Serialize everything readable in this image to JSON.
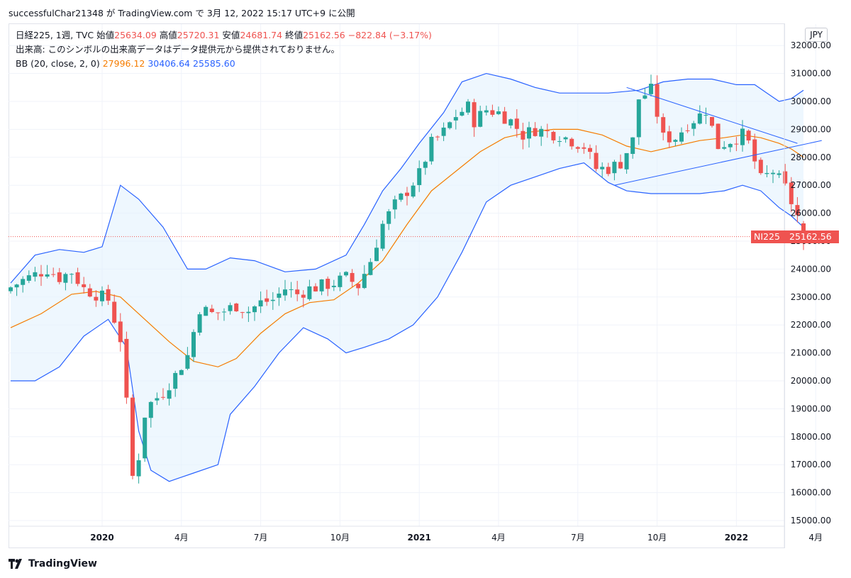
{
  "header": {
    "attribution": "successfulChar21348 が TradingView.com で 3月 12, 2022 15:17 UTC+9 に公開"
  },
  "legend": {
    "symbol": "日経225, 1週, TVC",
    "open_label": "始値",
    "open": "25634.09",
    "high_label": "高値",
    "high": "25720.31",
    "low_label": "安値",
    "low": "24681.74",
    "close_label": "終値",
    "close": "25162.56",
    "change": "−822.84 (−3.17%)",
    "volume_note": "出来高: このシンボルの出来高データはデータ提供元から提供されておりません。",
    "bb_label": "BB (20, close, 2, 0)",
    "bb_basis": "27996.12",
    "bb_upper": "30406.64",
    "bb_lower": "25585.60"
  },
  "currency": "JPY",
  "price_tag": {
    "symbol": "NI225",
    "value": "25162.56"
  },
  "footer": {
    "brand": "TradingView"
  },
  "colors": {
    "up": "#26a69a",
    "down": "#ef5350",
    "basis": "#f57c00",
    "band": "#2962ff",
    "band_fill": "#e3f2fd",
    "grid": "#f0f3fa"
  },
  "chart_data": {
    "type": "candlestick",
    "interval": "1W",
    "ylim": [
      15000,
      32000
    ],
    "y_ticks": [
      "15000.00",
      "16000.00",
      "17000.00",
      "18000.00",
      "19000.00",
      "20000.00",
      "21000.00",
      "22000.00",
      "23000.00",
      "24000.00",
      "25000.00",
      "26000.00",
      "27000.00",
      "28000.00",
      "29000.00",
      "30000.00",
      "31000.00",
      "32000.00"
    ],
    "x_ticks": [
      {
        "label": "2020",
        "week": 15,
        "bold": true
      },
      {
        "label": "4月",
        "week": 28,
        "bold": false
      },
      {
        "label": "7月",
        "week": 41,
        "bold": false
      },
      {
        "label": "10月",
        "week": 54,
        "bold": false
      },
      {
        "label": "2021",
        "week": 67,
        "bold": true
      },
      {
        "label": "4月",
        "week": 80,
        "bold": false
      },
      {
        "label": "7月",
        "week": 93,
        "bold": false
      },
      {
        "label": "10月",
        "week": 106,
        "bold": false
      },
      {
        "label": "2022",
        "week": 119,
        "bold": true
      },
      {
        "label": "4月",
        "week": 132,
        "bold": false
      }
    ],
    "last_price": 25162.56,
    "anchors": [
      [
        0,
        23350
      ],
      [
        2,
        23600
      ],
      [
        4,
        23800
      ],
      [
        6,
        24000
      ],
      [
        8,
        23700
      ],
      [
        10,
        23900
      ],
      [
        12,
        23300
      ],
      [
        14,
        23100
      ],
      [
        16,
        22900
      ],
      [
        18,
        21500
      ],
      [
        19,
        19400
      ],
      [
        20,
        16600
      ],
      [
        21,
        17300
      ],
      [
        22,
        18800
      ],
      [
        23,
        19200
      ],
      [
        25,
        19600
      ],
      [
        27,
        20200
      ],
      [
        29,
        20900
      ],
      [
        31,
        22600
      ],
      [
        33,
        22400
      ],
      [
        35,
        22500
      ],
      [
        37,
        22700
      ],
      [
        39,
        22500
      ],
      [
        41,
        22800
      ],
      [
        43,
        22900
      ],
      [
        45,
        23300
      ],
      [
        47,
        23100
      ],
      [
        49,
        23300
      ],
      [
        51,
        23400
      ],
      [
        53,
        23500
      ],
      [
        55,
        23700
      ],
      [
        57,
        23400
      ],
      [
        59,
        24300
      ],
      [
        61,
        25600
      ],
      [
        63,
        26300
      ],
      [
        65,
        26800
      ],
      [
        67,
        27400
      ],
      [
        69,
        28500
      ],
      [
        71,
        28900
      ],
      [
        73,
        29500
      ],
      [
        75,
        29800
      ],
      [
        76,
        29300
      ],
      [
        78,
        29700
      ],
      [
        80,
        29600
      ],
      [
        82,
        29300
      ],
      [
        84,
        28800
      ],
      [
        86,
        29000
      ],
      [
        88,
        28900
      ],
      [
        90,
        28800
      ],
      [
        92,
        28600
      ],
      [
        94,
        28400
      ],
      [
        96,
        27600
      ],
      [
        98,
        27600
      ],
      [
        100,
        27800
      ],
      [
        102,
        28600
      ],
      [
        103,
        30100
      ],
      [
        105,
        30400
      ],
      [
        107,
        28700
      ],
      [
        109,
        28700
      ],
      [
        111,
        29200
      ],
      [
        113,
        29500
      ],
      [
        114,
        29700
      ],
      [
        116,
        28400
      ],
      [
        118,
        28600
      ],
      [
        120,
        28800
      ],
      [
        121,
        28500
      ],
      [
        123,
        27200
      ],
      [
        125,
        27500
      ],
      [
        127,
        26900
      ],
      [
        129,
        25900
      ],
      [
        130,
        25162.56
      ]
    ],
    "bands": {
      "upper": [
        [
          0,
          23500
        ],
        [
          4,
          24500
        ],
        [
          8,
          24700
        ],
        [
          12,
          24600
        ],
        [
          15,
          24800
        ],
        [
          18,
          27000
        ],
        [
          21,
          26500
        ],
        [
          25,
          25500
        ],
        [
          29,
          24000
        ],
        [
          32,
          24000
        ],
        [
          36,
          24400
        ],
        [
          40,
          24300
        ],
        [
          45,
          23900
        ],
        [
          50,
          24000
        ],
        [
          55,
          24500
        ],
        [
          58,
          25600
        ],
        [
          61,
          26800
        ],
        [
          64,
          27600
        ],
        [
          67,
          28500
        ],
        [
          71,
          29600
        ],
        [
          74,
          30700
        ],
        [
          78,
          31000
        ],
        [
          82,
          30800
        ],
        [
          86,
          30500
        ],
        [
          90,
          30300
        ],
        [
          94,
          30300
        ],
        [
          98,
          30300
        ],
        [
          103,
          30400
        ],
        [
          107,
          30700
        ],
        [
          111,
          30800
        ],
        [
          115,
          30800
        ],
        [
          119,
          30600
        ],
        [
          122,
          30600
        ],
        [
          124,
          30300
        ],
        [
          126,
          30000
        ],
        [
          128,
          30100
        ],
        [
          130,
          30400
        ]
      ],
      "basis": [
        [
          0,
          21900
        ],
        [
          5,
          22400
        ],
        [
          10,
          23100
        ],
        [
          14,
          23200
        ],
        [
          18,
          23000
        ],
        [
          22,
          22200
        ],
        [
          26,
          21400
        ],
        [
          30,
          20700
        ],
        [
          34,
          20500
        ],
        [
          37,
          20800
        ],
        [
          41,
          21700
        ],
        [
          45,
          22400
        ],
        [
          49,
          22800
        ],
        [
          53,
          22900
        ],
        [
          57,
          23500
        ],
        [
          61,
          24300
        ],
        [
          65,
          25600
        ],
        [
          69,
          26800
        ],
        [
          73,
          27500
        ],
        [
          77,
          28200
        ],
        [
          81,
          28700
        ],
        [
          85,
          28900
        ],
        [
          89,
          29000
        ],
        [
          93,
          29000
        ],
        [
          97,
          28800
        ],
        [
          101,
          28400
        ],
        [
          105,
          28200
        ],
        [
          109,
          28400
        ],
        [
          113,
          28600
        ],
        [
          117,
          28700
        ],
        [
          120,
          28800
        ],
        [
          123,
          28700
        ],
        [
          126,
          28500
        ],
        [
          128,
          28300
        ],
        [
          130,
          28000
        ]
      ],
      "lower": [
        [
          0,
          20000
        ],
        [
          4,
          20000
        ],
        [
          8,
          20500
        ],
        [
          12,
          21600
        ],
        [
          16,
          22200
        ],
        [
          19,
          21200
        ],
        [
          21,
          18200
        ],
        [
          23,
          16800
        ],
        [
          26,
          16400
        ],
        [
          30,
          16700
        ],
        [
          34,
          17000
        ],
        [
          36,
          18800
        ],
        [
          40,
          19800
        ],
        [
          44,
          21000
        ],
        [
          48,
          21900
        ],
        [
          52,
          21500
        ],
        [
          55,
          21000
        ],
        [
          58,
          21200
        ],
        [
          62,
          21500
        ],
        [
          66,
          22000
        ],
        [
          70,
          23000
        ],
        [
          74,
          24600
        ],
        [
          78,
          26400
        ],
        [
          82,
          27000
        ],
        [
          86,
          27300
        ],
        [
          90,
          27600
        ],
        [
          94,
          27800
        ],
        [
          98,
          27100
        ],
        [
          101,
          26800
        ],
        [
          105,
          26700
        ],
        [
          109,
          26700
        ],
        [
          113,
          26700
        ],
        [
          117,
          26800
        ],
        [
          120,
          27000
        ],
        [
          123,
          26800
        ],
        [
          126,
          26200
        ],
        [
          128,
          25900
        ],
        [
          130,
          25500
        ]
      ]
    },
    "trendlines": [
      {
        "from": [
          101,
          30500
        ],
        "to": [
          129,
          28500
        ]
      },
      {
        "from": [
          99,
          27000
        ],
        "to": [
          133,
          28600
        ]
      }
    ]
  }
}
